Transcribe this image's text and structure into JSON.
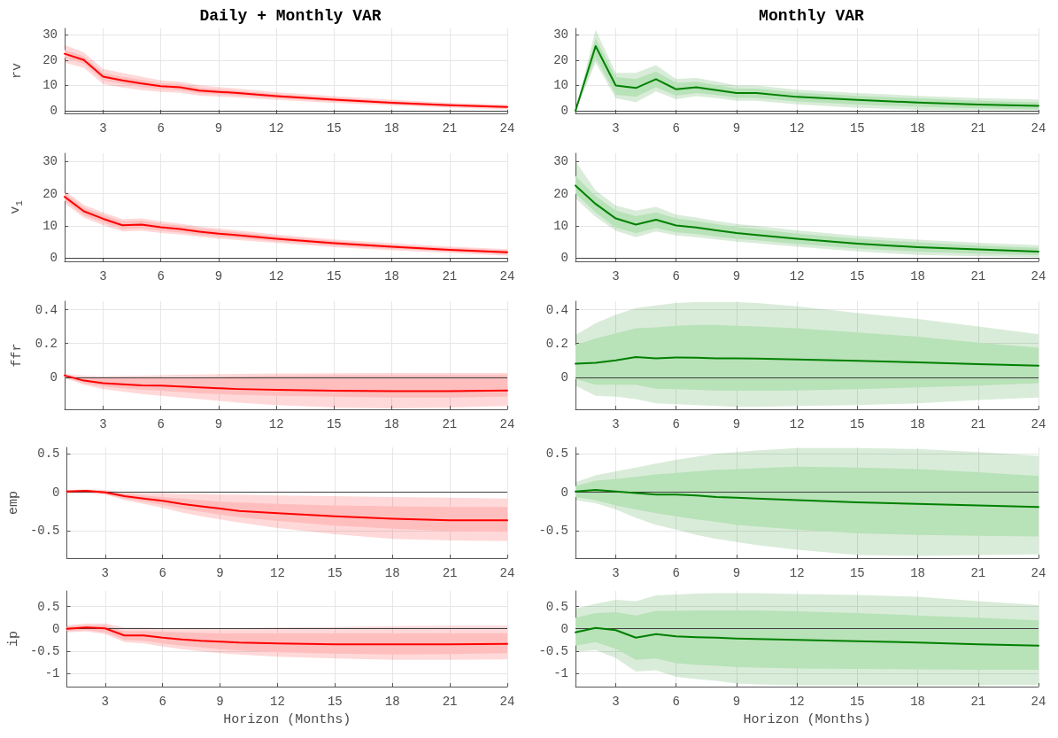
{
  "chart_data": [
    {
      "type": "line",
      "title": "Daily + Monthly VAR",
      "ylabel": "rv",
      "x": [
        1,
        2,
        3,
        4,
        5,
        6,
        7,
        8,
        9,
        10,
        12,
        15,
        18,
        21,
        24
      ],
      "xlim": [
        1,
        24
      ],
      "xticks": [
        3,
        6,
        9,
        12,
        15,
        18,
        21,
        24
      ],
      "ylim": [
        -1,
        32.5
      ],
      "yticks": [
        0,
        10,
        20,
        30
      ],
      "grid": true,
      "marker": "none",
      "line_style": "solid",
      "ref_lines": [
        {
          "axis": "y",
          "value": 0,
          "color": "#404040"
        }
      ],
      "series": [
        {
          "color": "#ff0000",
          "values": [
            22.5,
            20,
            13.5,
            12,
            10.8,
            9.7,
            9.3,
            8,
            7.5,
            7,
            5.8,
            4.4,
            3.2,
            2.2,
            1.5
          ],
          "lower": [
            19,
            17,
            10.5,
            9.2,
            8.2,
            7.5,
            7.1,
            6,
            5.6,
            5.3,
            4.3,
            3.1,
            2.1,
            1.3,
            0.6
          ],
          "upper": [
            26,
            23,
            16.5,
            15,
            13.5,
            12,
            11.5,
            10.1,
            9.4,
            8.8,
            7.4,
            5.8,
            4.4,
            3.2,
            2.5
          ]
        },
        {
          "color": "#ffbebe",
          "values": [
            null,
            null,
            null,
            null,
            null,
            null,
            null,
            null,
            null,
            null,
            null,
            null,
            null,
            null,
            null
          ],
          "lower": [
            21,
            18.5,
            12,
            10.6,
            9.4,
            8.5,
            8.1,
            6.9,
            6.5,
            6.1,
            5,
            3.7,
            2.6,
            1.7,
            1.0
          ],
          "upper": [
            24,
            21.5,
            15,
            13.4,
            12.2,
            10.9,
            10.5,
            9.1,
            8.5,
            7.9,
            6.6,
            5.1,
            3.8,
            2.7,
            2.0
          ]
        }
      ]
    },
    {
      "type": "line",
      "title": "Monthly VAR",
      "x": [
        1,
        2,
        3,
        4,
        5,
        6,
        7,
        8,
        9,
        10,
        12,
        15,
        18,
        21,
        24
      ],
      "xlim": [
        1,
        24
      ],
      "xticks": [
        3,
        6,
        9,
        12,
        15,
        18,
        21,
        24
      ],
      "ylim": [
        -1,
        32.5
      ],
      "yticks": [
        0,
        10,
        20,
        30
      ],
      "grid": true,
      "marker": "none",
      "line_style": "solid",
      "ref_lines": [
        {
          "axis": "y",
          "value": 0,
          "color": "#404040"
        }
      ],
      "series": [
        {
          "color": "#008000",
          "values": [
            0,
            25.5,
            10,
            9,
            12.5,
            8.5,
            9.3,
            8.2,
            7,
            7,
            5.5,
            4.3,
            3.3,
            2.5,
            2
          ],
          "lower": [
            0,
            19,
            5,
            3.4,
            7.6,
            4.6,
            5.8,
            5,
            4,
            4,
            2.6,
            1.2,
            0.4,
            0.2,
            0.1
          ],
          "upper": [
            0,
            32,
            15,
            15,
            18,
            12.5,
            13,
            11.6,
            10,
            10,
            8.3,
            7,
            5.9,
            5,
            4.5
          ]
        },
        {
          "color": "#b8e2b8",
          "values": [
            null,
            null,
            null,
            null,
            null,
            null,
            null,
            null,
            null,
            null,
            null,
            null,
            null,
            null,
            null
          ],
          "lower": [
            0,
            21,
            6.3,
            5.5,
            9.3,
            6,
            7,
            6.2,
            5.2,
            5.1,
            3.7,
            2.5,
            1.6,
            1,
            0.6
          ],
          "upper": [
            0,
            28.5,
            13.3,
            12.5,
            15.5,
            11,
            11.5,
            10.2,
            8.8,
            8.8,
            7.2,
            5.9,
            4.9,
            4,
            3.4
          ]
        }
      ]
    },
    {
      "type": "line",
      "ylabel": "v$_{1}$",
      "x": [
        1,
        2,
        3,
        4,
        5,
        6,
        7,
        8,
        9,
        10,
        12,
        15,
        18,
        21,
        24
      ],
      "xlim": [
        1,
        24
      ],
      "xticks": [
        3,
        6,
        9,
        12,
        15,
        18,
        21,
        24
      ],
      "ylim": [
        -1,
        32.5
      ],
      "yticks": [
        0,
        10,
        20,
        30
      ],
      "grid": true,
      "marker": "none",
      "line_style": "solid",
      "ref_lines": [
        {
          "axis": "y",
          "value": 0,
          "color": "#404040"
        }
      ],
      "series": [
        {
          "color": "#ff0000",
          "values": [
            19,
            14.5,
            12.2,
            10.2,
            10.4,
            9.6,
            9,
            8.2,
            7.6,
            7.1,
            6,
            4.6,
            3.5,
            2.6,
            1.8
          ],
          "lower": [
            17,
            12.5,
            10.2,
            8.3,
            8.5,
            7.8,
            7.3,
            6.6,
            6,
            5.6,
            4.7,
            3.4,
            2.4,
            1.6,
            0.8
          ],
          "upper": [
            21,
            16.5,
            14.2,
            12.1,
            12.3,
            11.4,
            10.7,
            9.8,
            9.2,
            8.6,
            7.3,
            5.8,
            4.6,
            3.6,
            2.8
          ]
        },
        {
          "color": "#ffbebe",
          "values": [
            null,
            null,
            null,
            null,
            null,
            null,
            null,
            null,
            null,
            null,
            null,
            null,
            null,
            null,
            null
          ],
          "lower": [
            17.8,
            13.3,
            11,
            9,
            9.2,
            8.5,
            7.9,
            7.2,
            6.6,
            6.2,
            5.2,
            3.9,
            2.9,
            2.0,
            1.2
          ],
          "upper": [
            20.2,
            15.7,
            13.4,
            11.4,
            11.6,
            10.7,
            10.1,
            9.2,
            8.6,
            8.0,
            6.8,
            5.3,
            4.1,
            3.2,
            2.4
          ]
        }
      ]
    },
    {
      "type": "line",
      "x": [
        1,
        2,
        3,
        4,
        5,
        6,
        7,
        8,
        9,
        10,
        12,
        15,
        18,
        21,
        24
      ],
      "xlim": [
        1,
        24
      ],
      "xticks": [
        3,
        6,
        9,
        12,
        15,
        18,
        21,
        24
      ],
      "ylim": [
        -1,
        32.5
      ],
      "yticks": [
        0,
        10,
        20,
        30
      ],
      "grid": true,
      "marker": "none",
      "line_style": "solid",
      "ref_lines": [
        {
          "axis": "y",
          "value": 0,
          "color": "#404040"
        }
      ],
      "series": [
        {
          "color": "#008000",
          "values": [
            22.5,
            16.8,
            12.3,
            10.4,
            11.9,
            10.1,
            9.5,
            8.6,
            7.8,
            7.2,
            6,
            4.5,
            3.4,
            2.7,
            2
          ],
          "lower": [
            18.5,
            12.8,
            8.5,
            6.5,
            8.3,
            7,
            6.5,
            5.8,
            5.1,
            4.6,
            3.5,
            2.1,
            1,
            0.6,
            0.3
          ],
          "upper": [
            30,
            21,
            16.3,
            14.7,
            15.9,
            13.5,
            12.6,
            11.5,
            10.6,
            10,
            8.6,
            6.9,
            5.7,
            4.8,
            4
          ]
        },
        {
          "color": "#b8e2b8",
          "values": [
            null,
            null,
            null,
            null,
            null,
            null,
            null,
            null,
            null,
            null,
            null,
            null,
            null,
            null,
            null
          ],
          "lower": [
            20,
            14.2,
            9.5,
            7.7,
            9.3,
            8,
            7.5,
            6.7,
            6,
            5.5,
            4.4,
            3,
            2,
            1.4,
            0.9
          ],
          "upper": [
            25.5,
            19.2,
            14.8,
            13,
            14.2,
            12.3,
            11.5,
            10.5,
            9.6,
            9,
            7.6,
            6,
            4.9,
            3.9,
            3.2
          ]
        }
      ]
    },
    {
      "type": "line",
      "ylabel": "ffr",
      "x": [
        1,
        2,
        3,
        4,
        5,
        6,
        7,
        8,
        9,
        10,
        12,
        15,
        18,
        21,
        24
      ],
      "xlim": [
        1,
        24
      ],
      "xticks": [
        3,
        6,
        9,
        12,
        15,
        18,
        21,
        24
      ],
      "ylim": [
        -0.19,
        0.45
      ],
      "yticks": [
        0,
        0.2,
        0.4
      ],
      "grid": true,
      "marker": "none",
      "line_style": "solid",
      "ref_lines": [
        {
          "axis": "y",
          "value": 0,
          "color": "#404040"
        }
      ],
      "series": [
        {
          "color": "#ff0000",
          "values": [
            0.01,
            -0.02,
            -0.035,
            -0.042,
            -0.048,
            -0.05,
            -0.055,
            -0.06,
            -0.065,
            -0.07,
            -0.075,
            -0.08,
            -0.083,
            -0.082,
            -0.078
          ],
          "lower": [
            -0.005,
            -0.045,
            -0.07,
            -0.085,
            -0.1,
            -0.11,
            -0.12,
            -0.13,
            -0.14,
            -0.15,
            -0.165,
            -0.18,
            -0.185,
            -0.18,
            -0.17
          ],
          "upper": [
            0.02,
            0.01,
            0.005,
            0.008,
            0.01,
            0.012,
            0.014,
            0.016,
            0.018,
            0.02,
            0.022,
            0.024,
            0.025,
            0.025,
            0.025
          ]
        },
        {
          "color": "#ffbebe",
          "values": [
            null,
            null,
            null,
            null,
            null,
            null,
            null,
            null,
            null,
            null,
            null,
            null,
            null,
            null,
            null
          ],
          "lower": [
            0,
            -0.035,
            -0.055,
            -0.065,
            -0.075,
            -0.08,
            -0.088,
            -0.095,
            -0.1,
            -0.105,
            -0.11,
            -0.115,
            -0.12,
            -0.12,
            -0.115
          ],
          "upper": [
            0.012,
            -0.005,
            -0.005,
            -0.005,
            -0.005,
            -0.003,
            -0.002,
            0,
            0.002,
            0.005,
            0.01,
            0.012,
            0.012,
            0.013,
            0.013
          ]
        }
      ]
    },
    {
      "type": "line",
      "x": [
        1,
        2,
        3,
        4,
        5,
        6,
        7,
        8,
        9,
        10,
        12,
        15,
        18,
        21,
        24
      ],
      "xlim": [
        1,
        24
      ],
      "xticks": [
        3,
        6,
        9,
        12,
        15,
        18,
        21,
        24
      ],
      "ylim": [
        -0.19,
        0.45
      ],
      "yticks": [
        0,
        0.2,
        0.4
      ],
      "grid": true,
      "marker": "none",
      "line_style": "solid",
      "ref_lines": [
        {
          "axis": "y",
          "value": 0,
          "color": "#404040"
        }
      ],
      "series": [
        {
          "color": "#008000",
          "values": [
            0.08,
            0.085,
            0.1,
            0.12,
            0.112,
            0.117,
            0.115,
            0.112,
            0.112,
            0.11,
            0.105,
            0.097,
            0.088,
            0.078,
            0.068
          ],
          "lower": [
            -0.05,
            -0.11,
            -0.115,
            -0.13,
            -0.155,
            -0.16,
            -0.165,
            -0.17,
            -0.175,
            -0.175,
            -0.17,
            -0.165,
            -0.155,
            -0.135,
            -0.12
          ],
          "upper": [
            0.25,
            0.32,
            0.37,
            0.41,
            0.425,
            0.44,
            0.445,
            0.445,
            0.445,
            0.44,
            0.42,
            0.38,
            0.345,
            0.3,
            0.255
          ]
        },
        {
          "color": "#b8e2b8",
          "values": [
            null,
            null,
            null,
            null,
            null,
            null,
            null,
            null,
            null,
            null,
            null,
            null,
            null,
            null,
            null
          ],
          "lower": [
            -0.01,
            -0.045,
            -0.045,
            -0.045,
            -0.068,
            -0.07,
            -0.075,
            -0.08,
            -0.08,
            -0.08,
            -0.078,
            -0.07,
            -0.06,
            -0.05,
            -0.035
          ],
          "upper": [
            0.19,
            0.23,
            0.26,
            0.29,
            0.295,
            0.305,
            0.31,
            0.31,
            0.305,
            0.3,
            0.29,
            0.265,
            0.24,
            0.205,
            0.175
          ]
        }
      ]
    },
    {
      "type": "line",
      "ylabel": "emp",
      "x": [
        1,
        2,
        3,
        4,
        5,
        6,
        7,
        8,
        9,
        10,
        12,
        15,
        18,
        21,
        24
      ],
      "xlim": [
        1,
        24
      ],
      "xticks": [
        3,
        6,
        9,
        12,
        15,
        18,
        21,
        24
      ],
      "ylim": [
        -0.85,
        0.58
      ],
      "yticks": [
        -0.5,
        0,
        0.5
      ],
      "grid": true,
      "marker": "none",
      "line_style": "solid",
      "ref_lines": [
        {
          "axis": "y",
          "value": 0,
          "color": "#404040"
        }
      ],
      "series": [
        {
          "color": "#ff0000",
          "values": [
            0.01,
            0.02,
            0,
            -0.05,
            -0.08,
            -0.11,
            -0.15,
            -0.18,
            -0.21,
            -0.24,
            -0.27,
            -0.31,
            -0.34,
            -0.36,
            -0.36
          ],
          "lower": [
            -0.01,
            -0.01,
            -0.03,
            -0.1,
            -0.15,
            -0.2,
            -0.26,
            -0.31,
            -0.35,
            -0.39,
            -0.46,
            -0.54,
            -0.6,
            -0.62,
            -0.63
          ],
          "upper": [
            0.03,
            0.04,
            0.03,
            0.0,
            -0.01,
            -0.01,
            -0.02,
            -0.02,
            -0.03,
            -0.03,
            -0.04,
            -0.05,
            -0.06,
            -0.07,
            -0.08
          ]
        },
        {
          "color": "#ffbebe",
          "values": [
            null,
            null,
            null,
            null,
            null,
            null,
            null,
            null,
            null,
            null,
            null,
            null,
            null,
            null,
            null
          ],
          "lower": [
            0,
            0,
            -0.02,
            -0.08,
            -0.12,
            -0.16,
            -0.21,
            -0.25,
            -0.29,
            -0.32,
            -0.37,
            -0.43,
            -0.47,
            -0.5,
            -0.51
          ],
          "upper": [
            0.02,
            0.03,
            0.02,
            -0.02,
            -0.04,
            -0.06,
            -0.08,
            -0.1,
            -0.12,
            -0.13,
            -0.15,
            -0.17,
            -0.18,
            -0.19,
            -0.19
          ]
        }
      ]
    },
    {
      "type": "line",
      "x": [
        1,
        2,
        3,
        4,
        5,
        6,
        7,
        8,
        9,
        10,
        12,
        15,
        18,
        21,
        24
      ],
      "xlim": [
        1,
        24
      ],
      "xticks": [
        3,
        6,
        9,
        12,
        15,
        18,
        21,
        24
      ],
      "ylim": [
        -0.85,
        0.58
      ],
      "yticks": [
        -0.5,
        0,
        0.5
      ],
      "grid": true,
      "marker": "none",
      "line_style": "solid",
      "ref_lines": [
        {
          "axis": "y",
          "value": 0,
          "color": "#404040"
        }
      ],
      "series": [
        {
          "color": "#008000",
          "values": [
            0.01,
            0.03,
            0.01,
            -0.01,
            -0.03,
            -0.03,
            -0.04,
            -0.06,
            -0.07,
            -0.08,
            -0.1,
            -0.13,
            -0.15,
            -0.17,
            -0.19
          ],
          "lower": [
            -0.1,
            -0.14,
            -0.22,
            -0.33,
            -0.42,
            -0.48,
            -0.55,
            -0.6,
            -0.64,
            -0.68,
            -0.74,
            -0.81,
            -0.82,
            -0.81,
            -0.8
          ],
          "upper": [
            0.13,
            0.22,
            0.27,
            0.32,
            0.37,
            0.42,
            0.46,
            0.5,
            0.52,
            0.54,
            0.57,
            0.57,
            0.56,
            0.52,
            0.47
          ]
        },
        {
          "color": "#b8e2b8",
          "values": [
            null,
            null,
            null,
            null,
            null,
            null,
            null,
            null,
            null,
            null,
            null,
            null,
            null,
            null,
            null
          ],
          "lower": [
            -0.06,
            -0.1,
            -0.17,
            -0.22,
            -0.27,
            -0.31,
            -0.35,
            -0.38,
            -0.42,
            -0.44,
            -0.48,
            -0.53,
            -0.55,
            -0.56,
            -0.57
          ],
          "upper": [
            0.08,
            0.15,
            0.17,
            0.2,
            0.23,
            0.25,
            0.27,
            0.29,
            0.3,
            0.31,
            0.33,
            0.32,
            0.3,
            0.26,
            0.21
          ]
        }
      ]
    },
    {
      "type": "line",
      "ylabel": "ip",
      "xlabel": "Horizon (Months)",
      "x": [
        1,
        2,
        3,
        4,
        5,
        6,
        7,
        8,
        9,
        10,
        12,
        15,
        18,
        21,
        24
      ],
      "xlim": [
        1,
        24
      ],
      "xticks": [
        3,
        6,
        9,
        12,
        15,
        18,
        21,
        24
      ],
      "ylim": [
        -1.3,
        0.85
      ],
      "yticks": [
        -1,
        -0.5,
        0,
        0.5
      ],
      "grid": true,
      "marker": "none",
      "line_style": "solid",
      "ref_lines": [
        {
          "axis": "y",
          "value": 0,
          "color": "#404040"
        }
      ],
      "series": [
        {
          "color": "#ff0000",
          "values": [
            0,
            0.03,
            0.01,
            -0.15,
            -0.15,
            -0.2,
            -0.24,
            -0.27,
            -0.29,
            -0.31,
            -0.33,
            -0.35,
            -0.35,
            -0.35,
            -0.34
          ],
          "lower": [
            -0.08,
            -0.06,
            -0.12,
            -0.3,
            -0.33,
            -0.4,
            -0.46,
            -0.51,
            -0.55,
            -0.58,
            -0.63,
            -0.67,
            -0.7,
            -0.7,
            -0.69
          ],
          "upper": [
            0.08,
            0.12,
            0.12,
            0.03,
            0.03,
            0.02,
            0.02,
            0.02,
            0.02,
            0.02,
            0.03,
            0.04,
            0.06,
            0.07,
            0.07
          ]
        },
        {
          "color": "#ffbebe",
          "values": [
            null,
            null,
            null,
            null,
            null,
            null,
            null,
            null,
            null,
            null,
            null,
            null,
            null,
            null,
            null
          ],
          "lower": [
            -0.05,
            -0.03,
            -0.08,
            -0.25,
            -0.27,
            -0.33,
            -0.38,
            -0.42,
            -0.46,
            -0.49,
            -0.53,
            -0.56,
            -0.58,
            -0.57,
            -0.55
          ],
          "upper": [
            0.05,
            0.08,
            0.08,
            -0.05,
            -0.05,
            -0.07,
            -0.08,
            -0.09,
            -0.1,
            -0.1,
            -0.1,
            -0.1,
            -0.1,
            -0.1,
            -0.1
          ]
        }
      ]
    },
    {
      "type": "line",
      "xlabel": "Horizon (Months)",
      "x": [
        1,
        2,
        3,
        4,
        5,
        6,
        7,
        8,
        9,
        10,
        12,
        15,
        18,
        21,
        24
      ],
      "xlim": [
        1,
        24
      ],
      "xticks": [
        3,
        6,
        9,
        12,
        15,
        18,
        21,
        24
      ],
      "ylim": [
        -1.3,
        0.85
      ],
      "yticks": [
        -1,
        -0.5,
        0,
        0.5
      ],
      "grid": true,
      "marker": "none",
      "line_style": "solid",
      "ref_lines": [
        {
          "axis": "y",
          "value": 0,
          "color": "#404040"
        }
      ],
      "series": [
        {
          "color": "#008000",
          "values": [
            -0.08,
            0.02,
            -0.03,
            -0.2,
            -0.12,
            -0.17,
            -0.19,
            -0.2,
            -0.22,
            -0.23,
            -0.25,
            -0.28,
            -0.31,
            -0.35,
            -0.38
          ],
          "lower": [
            -0.52,
            -0.48,
            -0.66,
            -0.96,
            -0.93,
            -1.08,
            -1.13,
            -1.17,
            -1.23,
            -1.25,
            -1.27,
            -1.27,
            -1.27,
            -1.27,
            -1.26
          ],
          "upper": [
            0.45,
            0.56,
            0.65,
            0.62,
            0.75,
            0.77,
            0.79,
            0.8,
            0.8,
            0.8,
            0.78,
            0.76,
            0.72,
            0.62,
            0.53
          ]
        },
        {
          "color": "#b8e2b8",
          "values": [
            null,
            null,
            null,
            null,
            null,
            null,
            null,
            null,
            null,
            null,
            null,
            null,
            null,
            null,
            null
          ],
          "lower": [
            -0.38,
            -0.3,
            -0.45,
            -0.7,
            -0.67,
            -0.77,
            -0.81,
            -0.83,
            -0.86,
            -0.87,
            -0.89,
            -0.9,
            -0.91,
            -0.92,
            -0.92
          ],
          "upper": [
            0.25,
            0.35,
            0.37,
            0.3,
            0.4,
            0.4,
            0.41,
            0.41,
            0.41,
            0.41,
            0.39,
            0.35,
            0.3,
            0.25,
            0.19
          ]
        }
      ]
    }
  ]
}
